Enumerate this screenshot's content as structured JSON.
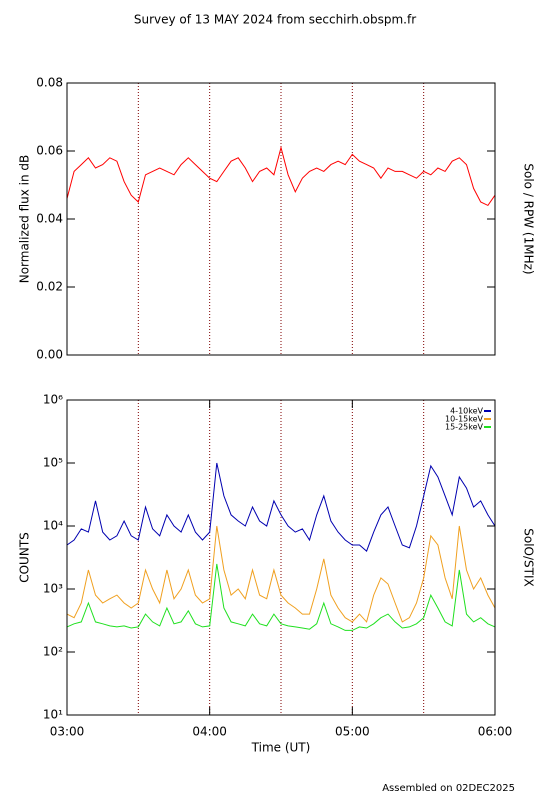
{
  "title": "Survey of 13 MAY 2024 from secchirh.obspm.fr",
  "footer": "Assembled on 02DEC2025",
  "chart_data": [
    {
      "type": "line",
      "ylabel": "Normalized flux in dB",
      "right_label": "Solo / RPW (1MHz)",
      "xlim": [
        3,
        6
      ],
      "vlines": [
        3.5,
        4,
        4.5,
        5,
        5.5
      ],
      "ylim": [
        0,
        0.08
      ],
      "yticks": [
        {
          "value": 0,
          "label": "0.00"
        },
        {
          "value": 0.02,
          "label": "0.02"
        },
        {
          "value": 0.04,
          "label": "0.04"
        },
        {
          "value": 0.06,
          "label": "0.06"
        },
        {
          "value": 0.08,
          "label": "0.08"
        }
      ],
      "x": [
        3.0,
        3.05,
        3.1,
        3.15,
        3.2,
        3.25,
        3.3,
        3.35,
        3.4,
        3.45,
        3.5,
        3.55,
        3.6,
        3.65,
        3.7,
        3.75,
        3.8,
        3.85,
        3.9,
        3.95,
        4.0,
        4.05,
        4.1,
        4.15,
        4.2,
        4.25,
        4.3,
        4.35,
        4.4,
        4.45,
        4.5,
        4.55,
        4.6,
        4.65,
        4.7,
        4.75,
        4.8,
        4.85,
        4.9,
        4.95,
        5.0,
        5.05,
        5.1,
        5.15,
        5.2,
        5.25,
        5.3,
        5.35,
        5.4,
        5.45,
        5.5,
        5.55,
        5.6,
        5.65,
        5.7,
        5.75,
        5.8,
        5.85,
        5.9,
        5.95,
        6.0
      ],
      "series": [
        {
          "color": "#ff0000",
          "values": [
            0.046,
            0.054,
            0.056,
            0.058,
            0.055,
            0.056,
            0.058,
            0.057,
            0.051,
            0.047,
            0.045,
            0.053,
            0.054,
            0.055,
            0.054,
            0.053,
            0.056,
            0.058,
            0.056,
            0.054,
            0.052,
            0.051,
            0.054,
            0.057,
            0.058,
            0.055,
            0.051,
            0.054,
            0.055,
            0.053,
            0.061,
            0.053,
            0.048,
            0.052,
            0.054,
            0.055,
            0.054,
            0.056,
            0.057,
            0.056,
            0.059,
            0.057,
            0.056,
            0.055,
            0.052,
            0.055,
            0.054,
            0.054,
            0.053,
            0.052,
            0.054,
            0.053,
            0.055,
            0.054,
            0.057,
            0.058,
            0.056,
            0.049,
            0.045,
            0.044,
            0.047
          ]
        }
      ]
    },
    {
      "type": "line",
      "ylabel": "COUNTS",
      "right_label": "SolO/STIX",
      "xlabel": "Time (UT)",
      "log": true,
      "xlim": [
        3,
        6
      ],
      "xticks": [
        {
          "value": 3,
          "label": "03:00"
        },
        {
          "value": 4,
          "label": "04:00"
        },
        {
          "value": 5,
          "label": "05:00"
        },
        {
          "value": 6,
          "label": "06:00"
        }
      ],
      "vlines": [
        3.5,
        4,
        4.5,
        5,
        5.5
      ],
      "ylim": [
        10,
        1000000
      ],
      "yticks": [
        {
          "value": 10,
          "label": "10¹"
        },
        {
          "value": 100,
          "label": "10²"
        },
        {
          "value": 1000,
          "label": "10³"
        },
        {
          "value": 10000,
          "label": "10⁴"
        },
        {
          "value": 100000,
          "label": "10⁵"
        },
        {
          "value": 1000000,
          "label": "10⁶"
        }
      ],
      "x": [
        3.0,
        3.05,
        3.1,
        3.15,
        3.2,
        3.25,
        3.3,
        3.35,
        3.4,
        3.45,
        3.5,
        3.55,
        3.6,
        3.65,
        3.7,
        3.75,
        3.8,
        3.85,
        3.9,
        3.95,
        4.0,
        4.05,
        4.1,
        4.15,
        4.2,
        4.25,
        4.3,
        4.35,
        4.4,
        4.45,
        4.5,
        4.55,
        4.6,
        4.65,
        4.7,
        4.75,
        4.8,
        4.85,
        4.9,
        4.95,
        5.0,
        5.05,
        5.1,
        5.15,
        5.2,
        5.25,
        5.3,
        5.35,
        5.4,
        5.45,
        5.5,
        5.55,
        5.6,
        5.65,
        5.7,
        5.75,
        5.8,
        5.85,
        5.9,
        5.95,
        6.0
      ],
      "series": [
        {
          "name": "4-10keV",
          "color": "#0000b0",
          "values": [
            5000,
            6000,
            9000,
            8000,
            25000,
            8000,
            6000,
            7000,
            12000,
            7000,
            6000,
            20000,
            9000,
            7000,
            15000,
            10000,
            8000,
            15000,
            8000,
            6000,
            8000,
            100000,
            30000,
            15000,
            12000,
            10000,
            20000,
            12000,
            10000,
            25000,
            15000,
            10000,
            8000,
            9000,
            6000,
            15000,
            30000,
            12000,
            8000,
            6000,
            5000,
            5000,
            4000,
            8000,
            15000,
            20000,
            10000,
            5000,
            4500,
            10000,
            30000,
            90000,
            60000,
            30000,
            15000,
            60000,
            40000,
            20000,
            25000,
            15000,
            10000
          ]
        },
        {
          "name": "10-15keV",
          "color": "#f0a020",
          "values": [
            400,
            350,
            600,
            2000,
            800,
            600,
            700,
            800,
            600,
            500,
            600,
            2000,
            1000,
            600,
            2000,
            700,
            1000,
            2000,
            800,
            600,
            700,
            10000,
            2000,
            800,
            1000,
            700,
            2000,
            800,
            700,
            2000,
            800,
            600,
            500,
            400,
            400,
            1000,
            3000,
            800,
            500,
            350,
            300,
            400,
            300,
            800,
            1500,
            1200,
            600,
            300,
            350,
            600,
            1500,
            7000,
            5000,
            1500,
            700,
            10000,
            2000,
            1000,
            1500,
            800,
            500
          ]
        },
        {
          "name": "15-25keV",
          "color": "#20e020",
          "values": [
            250,
            280,
            300,
            600,
            300,
            280,
            260,
            250,
            260,
            240,
            250,
            400,
            300,
            260,
            500,
            280,
            300,
            450,
            280,
            250,
            260,
            2500,
            500,
            300,
            280,
            260,
            400,
            280,
            260,
            400,
            280,
            260,
            250,
            240,
            230,
            280,
            600,
            280,
            250,
            220,
            220,
            250,
            240,
            280,
            350,
            400,
            300,
            240,
            250,
            280,
            350,
            800,
            500,
            300,
            260,
            2000,
            400,
            300,
            350,
            280,
            250
          ]
        }
      ]
    }
  ]
}
